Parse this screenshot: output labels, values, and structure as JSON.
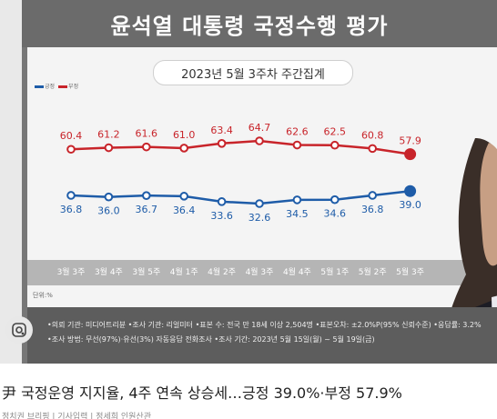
{
  "header": {
    "title": "윤석열 대통령 국정수행 평가"
  },
  "chart_data": {
    "type": "line",
    "subtitle": "2023년 5월 3주차 주간집계",
    "categories": [
      "3월 3주",
      "3월 4주",
      "3월 5주",
      "4월 1주",
      "4월 2주",
      "4월 3주",
      "4월 4주",
      "5월 1주",
      "5월 2주",
      "5월 3주"
    ],
    "series": [
      {
        "name": "부정",
        "color": "#c8242a",
        "values": [
          60.4,
          61.2,
          61.6,
          61.0,
          63.4,
          64.7,
          62.6,
          62.5,
          60.8,
          57.9
        ]
      },
      {
        "name": "긍정",
        "color": "#1e5ca8",
        "values": [
          36.8,
          36.0,
          36.7,
          36.4,
          33.6,
          32.6,
          34.5,
          34.6,
          36.8,
          39.0
        ]
      }
    ],
    "legend": [
      "긍정",
      "부정"
    ],
    "legend_position": "top-left",
    "unit_label": "단위:%",
    "ylim": [
      25,
      70
    ]
  },
  "notes": {
    "line1": "•의뢰 기관: 미디어트리뷴 •조사 기관: 리얼미터 •표본 수: 전국 만 18세 이상 2,504명 •표본오차: ±2.0%P(95% 신뢰수준) •응답률: 3.2%",
    "line2": "•조사 방법: 무선(97%)·유선(3%) 자동응답 전화조사 •조사 기간: 2023년 5월 15일(월) ~ 5월 19일(금)"
  },
  "article": {
    "headline": "尹 국정운영 지지율, 4주 연속 상승세…긍정 39.0%·부정 57.9%",
    "byline": "정치권 브리핑 | 기사입력 | 정세희 인원산관"
  }
}
